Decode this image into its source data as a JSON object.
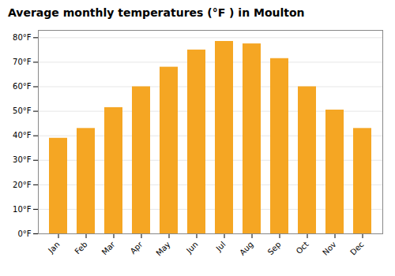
{
  "chart_data": {
    "type": "bar",
    "title": "Average monthly temperatures (°F ) in Moulton",
    "categories": [
      "Jan",
      "Feb",
      "Mar",
      "Apr",
      "May",
      "Jun",
      "Jul",
      "Aug",
      "Sep",
      "Oct",
      "Nov",
      "Dec"
    ],
    "values": [
      39,
      43,
      51.5,
      60,
      68,
      75,
      78.5,
      77.5,
      71.5,
      60,
      50.5,
      43
    ],
    "color": "#F5A623",
    "ylim": [
      0,
      83
    ],
    "yticks": [
      {
        "value": 0,
        "label": "0°F"
      },
      {
        "value": 10,
        "label": "10°F"
      },
      {
        "value": 20,
        "label": "20°F"
      },
      {
        "value": 30,
        "label": "30°F"
      },
      {
        "value": 40,
        "label": "40°F"
      },
      {
        "value": 50,
        "label": "50°F"
      },
      {
        "value": 60,
        "label": "60°F"
      },
      {
        "value": 70,
        "label": "70°F"
      },
      {
        "value": 80,
        "label": "80°F"
      }
    ],
    "grid": true
  }
}
